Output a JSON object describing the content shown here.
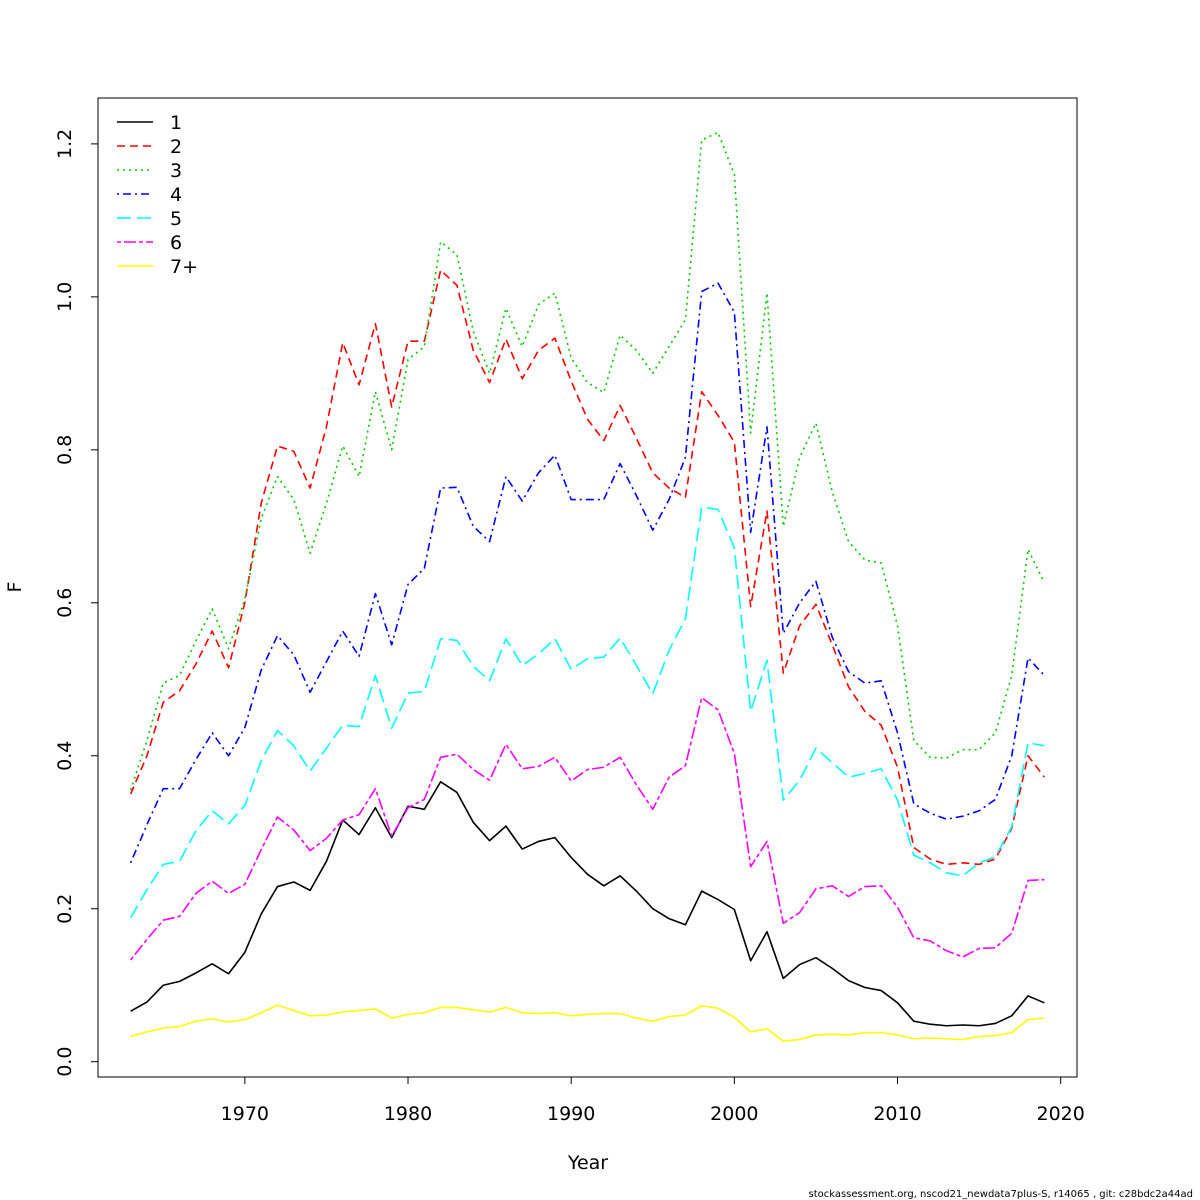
{
  "chart_data": {
    "type": "line",
    "xlabel": "Year",
    "ylabel": "F",
    "xlim": [
      1961,
      2021
    ],
    "ylim": [
      -0.02,
      1.26
    ],
    "x_ticks": [
      1970,
      1980,
      1990,
      2000,
      2010,
      2020
    ],
    "y_ticks": [
      0.0,
      0.2,
      0.4,
      0.6,
      0.8,
      1.0,
      1.2
    ],
    "y_tick_labels": [
      "0.0",
      "0.2",
      "0.4",
      "0.6",
      "0.8",
      "1.0",
      "1.2"
    ],
    "grid": false,
    "legend_position": "top-left",
    "years": [
      1963,
      1964,
      1965,
      1966,
      1967,
      1968,
      1969,
      1970,
      1971,
      1972,
      1973,
      1974,
      1975,
      1976,
      1977,
      1978,
      1979,
      1980,
      1981,
      1982,
      1983,
      1984,
      1985,
      1986,
      1987,
      1988,
      1989,
      1990,
      1991,
      1992,
      1993,
      1994,
      1995,
      1996,
      1997,
      1998,
      1999,
      2000,
      2001,
      2002,
      2003,
      2004,
      2005,
      2006,
      2007,
      2008,
      2009,
      2010,
      2011,
      2012,
      2013,
      2014,
      2015,
      2016,
      2017,
      2018,
      2019
    ],
    "series": [
      {
        "name": "1",
        "color": "#000000",
        "dash": "solid",
        "values": [
          0.066,
          0.078,
          0.1,
          0.105,
          0.116,
          0.128,
          0.115,
          0.143,
          0.193,
          0.229,
          0.235,
          0.224,
          0.262,
          0.316,
          0.297,
          0.332,
          0.293,
          0.334,
          0.33,
          0.366,
          0.352,
          0.313,
          0.289,
          0.308,
          0.278,
          0.288,
          0.293,
          0.267,
          0.245,
          0.23,
          0.243,
          0.223,
          0.2,
          0.187,
          0.179,
          0.223,
          0.212,
          0.199,
          0.132,
          0.17,
          0.109,
          0.127,
          0.136,
          0.122,
          0.106,
          0.097,
          0.093,
          0.077,
          0.053,
          0.049,
          0.047,
          0.048,
          0.047,
          0.05,
          0.06,
          0.086,
          0.077
        ]
      },
      {
        "name": "2",
        "color": "#ff0000",
        "dash": "dashed",
        "values": [
          0.35,
          0.4,
          0.47,
          0.485,
          0.52,
          0.563,
          0.515,
          0.6,
          0.73,
          0.805,
          0.798,
          0.75,
          0.83,
          0.94,
          0.885,
          0.965,
          0.856,
          0.942,
          0.942,
          1.035,
          1.015,
          0.93,
          0.888,
          0.945,
          0.893,
          0.93,
          0.946,
          0.89,
          0.84,
          0.812,
          0.858,
          0.815,
          0.77,
          0.75,
          0.738,
          0.876,
          0.845,
          0.81,
          0.595,
          0.72,
          0.508,
          0.57,
          0.598,
          0.545,
          0.49,
          0.458,
          0.44,
          0.385,
          0.28,
          0.265,
          0.258,
          0.26,
          0.258,
          0.265,
          0.305,
          0.4,
          0.372
        ]
      },
      {
        "name": "3",
        "color": "#00cd00",
        "dash": "dotted",
        "values": [
          0.355,
          0.42,
          0.495,
          0.505,
          0.55,
          0.592,
          0.54,
          0.605,
          0.71,
          0.765,
          0.735,
          0.665,
          0.73,
          0.805,
          0.765,
          0.876,
          0.8,
          0.918,
          0.935,
          1.072,
          1.055,
          0.955,
          0.9,
          0.985,
          0.935,
          0.99,
          1.005,
          0.92,
          0.888,
          0.875,
          0.95,
          0.93,
          0.9,
          0.935,
          0.97,
          1.205,
          1.215,
          1.16,
          0.822,
          1.005,
          0.7,
          0.79,
          0.835,
          0.745,
          0.68,
          0.656,
          0.652,
          0.57,
          0.42,
          0.398,
          0.397,
          0.408,
          0.408,
          0.43,
          0.505,
          0.67,
          0.626
        ]
      },
      {
        "name": "4",
        "color": "#0000ff",
        "dash": "dashdot",
        "values": [
          0.26,
          0.31,
          0.357,
          0.357,
          0.395,
          0.43,
          0.4,
          0.437,
          0.512,
          0.557,
          0.532,
          0.483,
          0.523,
          0.563,
          0.53,
          0.612,
          0.545,
          0.624,
          0.645,
          0.75,
          0.751,
          0.7,
          0.68,
          0.765,
          0.733,
          0.77,
          0.793,
          0.735,
          0.735,
          0.735,
          0.782,
          0.74,
          0.695,
          0.735,
          0.79,
          1.007,
          1.018,
          0.98,
          0.692,
          0.83,
          0.56,
          0.6,
          0.628,
          0.555,
          0.51,
          0.495,
          0.498,
          0.43,
          0.337,
          0.325,
          0.317,
          0.321,
          0.328,
          0.343,
          0.4,
          0.528,
          0.505
        ]
      },
      {
        "name": "5",
        "color": "#00ffff",
        "dash": "longdash",
        "values": [
          0.188,
          0.225,
          0.258,
          0.262,
          0.302,
          0.328,
          0.311,
          0.335,
          0.393,
          0.433,
          0.413,
          0.38,
          0.41,
          0.44,
          0.438,
          0.505,
          0.436,
          0.482,
          0.484,
          0.553,
          0.551,
          0.517,
          0.498,
          0.553,
          0.518,
          0.533,
          0.553,
          0.513,
          0.527,
          0.529,
          0.554,
          0.518,
          0.481,
          0.538,
          0.579,
          0.725,
          0.722,
          0.672,
          0.458,
          0.525,
          0.342,
          0.368,
          0.41,
          0.391,
          0.372,
          0.377,
          0.383,
          0.342,
          0.27,
          0.26,
          0.247,
          0.243,
          0.26,
          0.268,
          0.307,
          0.417,
          0.413
        ]
      },
      {
        "name": "6",
        "color": "#ff00ff",
        "dash": "twodash",
        "values": [
          0.133,
          0.16,
          0.185,
          0.19,
          0.22,
          0.236,
          0.22,
          0.232,
          0.277,
          0.32,
          0.303,
          0.276,
          0.292,
          0.316,
          0.323,
          0.357,
          0.295,
          0.332,
          0.343,
          0.398,
          0.402,
          0.382,
          0.368,
          0.415,
          0.383,
          0.386,
          0.398,
          0.367,
          0.382,
          0.385,
          0.398,
          0.362,
          0.33,
          0.372,
          0.387,
          0.476,
          0.46,
          0.403,
          0.255,
          0.288,
          0.181,
          0.195,
          0.226,
          0.23,
          0.216,
          0.229,
          0.23,
          0.202,
          0.162,
          0.158,
          0.145,
          0.137,
          0.148,
          0.149,
          0.168,
          0.237,
          0.238
        ]
      },
      {
        "name": "7+",
        "color": "#ffff00",
        "dash": "solid",
        "values": [
          0.033,
          0.039,
          0.044,
          0.046,
          0.053,
          0.056,
          0.052,
          0.055,
          0.064,
          0.074,
          0.067,
          0.06,
          0.061,
          0.065,
          0.067,
          0.069,
          0.057,
          0.062,
          0.064,
          0.071,
          0.071,
          0.068,
          0.065,
          0.071,
          0.064,
          0.063,
          0.064,
          0.06,
          0.062,
          0.063,
          0.063,
          0.057,
          0.053,
          0.059,
          0.061,
          0.073,
          0.07,
          0.058,
          0.039,
          0.043,
          0.027,
          0.029,
          0.035,
          0.036,
          0.035,
          0.038,
          0.038,
          0.035,
          0.03,
          0.031,
          0.03,
          0.029,
          0.033,
          0.034,
          0.038,
          0.055,
          0.057
        ]
      }
    ]
  },
  "footer": {
    "credit": "stockassessment.org, nscod21_newdata7plus-S, r14065 , git: c28bdc2a44ad"
  }
}
